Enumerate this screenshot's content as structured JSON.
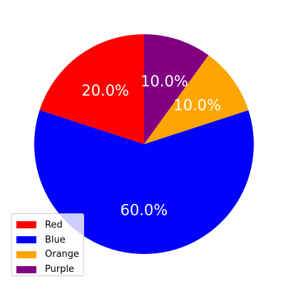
{
  "chart_data": {
    "type": "pie",
    "title": "",
    "slices": [
      {
        "label": "Red",
        "value": 20.0,
        "pct_label": "20.0%",
        "color": "#ff0000"
      },
      {
        "label": "Blue",
        "value": 60.0,
        "pct_label": "60.0%",
        "color": "#0000ff"
      },
      {
        "label": "Orange",
        "value": 10.0,
        "pct_label": "10.0%",
        "color": "#ffa500"
      },
      {
        "label": "Purple",
        "value": 10.0,
        "pct_label": "10.0%",
        "color": "#800080"
      }
    ],
    "start_angle_deg": 90,
    "direction": "counterclockwise",
    "label_color": "#ffffff",
    "legend": {
      "placement": "lower-left",
      "entries": [
        "Red",
        "Blue",
        "Orange",
        "Purple"
      ]
    }
  }
}
